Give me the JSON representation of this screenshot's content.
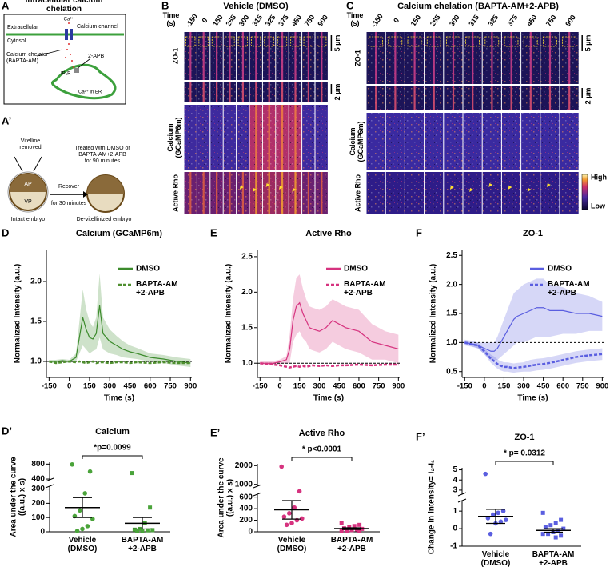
{
  "panels": {
    "A": {
      "letter": "A",
      "title": "Intracellular calcium\nchelation",
      "extracellular": "Extracellular",
      "cytosol": "Cytosol",
      "ca": "Ca²⁺",
      "channel": "Calcium channel",
      "chelator": "Calcium chelator\n(BAPTA-AM)",
      "apb": "2-APB",
      "ip3r": "IP₃R",
      "er": "Ca²⁺ in ER"
    },
    "A2": {
      "letter": "A’",
      "vitelline": "Vitelline\nremoved",
      "ap": "AP",
      "vp": "VP",
      "recover": "Recover",
      "recover_time": "for 30 minutes",
      "treated": "Treated with DMSO or\nBAPTA-AM+2-APB\nfor 90 minutes",
      "intact": "Intact embryo",
      "devit": "De-vitellinized embryo"
    },
    "B": {
      "letter": "B",
      "title": "Vehicle (DMSO)",
      "time": "Time\n(s)",
      "times": [
        -150,
        0,
        150,
        265,
        300,
        315,
        325,
        375,
        450,
        750,
        900
      ],
      "rows": [
        "ZO-1",
        "Calcium\n(GCaMP6m)",
        "Active Rho"
      ],
      "scale_large": "5 µm",
      "scale_small": "2 µm"
    },
    "C": {
      "letter": "C",
      "title": "Calcium chelation (BAPTA-AM+2-APB)",
      "time": "Time\n(s)",
      "times": [
        -150,
        0,
        150,
        265,
        300,
        315,
        325,
        375,
        450,
        750,
        900
      ],
      "rows": [
        "ZO-1",
        "Calcium\n(GCaMP6m)",
        "Active Rho"
      ],
      "scale_large": "5 µm",
      "scale_small": "2 µm",
      "colorbar_high": "High",
      "colorbar_low": "Low"
    }
  },
  "chart_data": [
    {
      "type": "line",
      "panel": "D",
      "title": "Calcium (GCaMP6m)",
      "xlabel": "Time (s)",
      "ylabel": "Normalized Intensity (a.u.)",
      "x": [
        -150,
        -100,
        -50,
        0,
        50,
        75,
        100,
        125,
        150,
        175,
        200,
        225,
        250,
        300,
        350,
        400,
        450,
        500,
        600,
        700,
        800,
        900
      ],
      "series": [
        {
          "name": "DMSO",
          "color": "#3c8b2c",
          "dash": false,
          "values": [
            1.0,
            1.0,
            1.01,
            1.0,
            1.05,
            1.3,
            1.55,
            1.4,
            1.3,
            1.28,
            1.35,
            1.7,
            1.35,
            1.25,
            1.2,
            1.15,
            1.12,
            1.1,
            1.05,
            1.03,
            1.0,
            0.98
          ],
          "errors": [
            0.02,
            0.02,
            0.02,
            0.02,
            0.05,
            0.2,
            0.35,
            0.25,
            0.2,
            0.15,
            0.2,
            0.4,
            0.2,
            0.15,
            0.12,
            0.1,
            0.08,
            0.07,
            0.05,
            0.05,
            0.05,
            0.05
          ]
        },
        {
          "name": "BAPTA-AM\n+2-APB",
          "color": "#4f8f2f",
          "dash": true,
          "values": [
            1.0,
            0.98,
            0.99,
            1.0,
            0.99,
            1.0,
            0.99,
            0.98,
            0.99,
            1.0,
            0.98,
            0.99,
            0.99,
            0.98,
            0.99,
            0.99,
            0.98,
            0.99,
            0.98,
            0.99,
            0.98,
            0.98
          ]
        }
      ],
      "xlim": [
        -170,
        910
      ],
      "xticks": [
        -150,
        0,
        150,
        300,
        450,
        600,
        750,
        900
      ],
      "ylim": [
        0.8,
        2.4
      ],
      "yticks": [
        {
          "value": 1,
          "label": "1.0"
        },
        1.5,
        {
          "value": 2,
          "label": "2.0"
        }
      ],
      "reference": 1,
      "legend": "upper right"
    },
    {
      "type": "line",
      "panel": "E",
      "title": "Active Rho",
      "xlabel": "Time (s)",
      "ylabel": "Normalized Intensity (a.u.)",
      "x": [
        -150,
        -100,
        -50,
        0,
        50,
        75,
        100,
        125,
        150,
        175,
        200,
        225,
        250,
        300,
        350,
        400,
        450,
        500,
        600,
        700,
        800,
        900
      ],
      "series": [
        {
          "name": "DMSO",
          "color": "#d6337f",
          "dash": false,
          "values": [
            1.0,
            1.0,
            1.0,
            1.02,
            1.05,
            1.2,
            1.6,
            1.8,
            1.85,
            1.7,
            1.6,
            1.5,
            1.48,
            1.45,
            1.5,
            1.6,
            1.55,
            1.5,
            1.45,
            1.3,
            1.25,
            1.2
          ],
          "errors": [
            0.03,
            0.03,
            0.03,
            0.03,
            0.05,
            0.2,
            0.3,
            0.4,
            0.4,
            0.35,
            0.3,
            0.3,
            0.3,
            0.3,
            0.3,
            0.3,
            0.3,
            0.3,
            0.3,
            0.25,
            0.2,
            0.2
          ]
        },
        {
          "name": "BAPTA-AM\n+2-APB",
          "color": "#d6337f",
          "dash": true,
          "values": [
            1.0,
            0.99,
            0.98,
            0.97,
            0.95,
            0.94,
            0.95,
            0.96,
            0.95,
            0.96,
            0.95,
            0.96,
            0.97,
            0.96,
            0.97,
            0.96,
            0.97,
            0.97,
            0.98,
            0.97,
            0.98,
            0.98
          ]
        }
      ],
      "xlim": [
        -170,
        910
      ],
      "xticks": [
        -150,
        0,
        150,
        300,
        450,
        600,
        750,
        900
      ],
      "ylim": [
        0.8,
        2.6
      ],
      "yticks": [
        {
          "value": 1,
          "label": "1.0"
        },
        1.5,
        {
          "value": 2,
          "label": "2.0"
        },
        2.5
      ],
      "reference": 1,
      "legend": "upper right"
    },
    {
      "type": "line",
      "panel": "F",
      "title": "ZO-1",
      "xlabel": "Time (s)",
      "ylabel": "Normalized Intensity (a.u.)",
      "x": [
        -150,
        -100,
        -50,
        0,
        50,
        75,
        100,
        125,
        150,
        175,
        200,
        225,
        250,
        300,
        350,
        400,
        450,
        500,
        600,
        700,
        800,
        900
      ],
      "series": [
        {
          "name": "DMSO",
          "color": "#5a5ee0",
          "dash": false,
          "values": [
            1.0,
            0.98,
            0.95,
            0.9,
            0.85,
            0.85,
            0.9,
            1.0,
            1.1,
            1.2,
            1.3,
            1.4,
            1.45,
            1.5,
            1.55,
            1.6,
            1.6,
            1.55,
            1.55,
            1.5,
            1.5,
            1.45
          ],
          "errors": [
            0.05,
            0.05,
            0.05,
            0.1,
            0.15,
            0.15,
            0.2,
            0.25,
            0.3,
            0.35,
            0.4,
            0.45,
            0.45,
            0.5,
            0.5,
            0.5,
            0.5,
            0.45,
            0.4,
            0.35,
            0.3,
            0.25
          ]
        },
        {
          "name": "BAPTA-AM\n+2-APB",
          "color": "#5a5ee0",
          "dash": true,
          "values": [
            1.0,
            0.97,
            0.95,
            0.85,
            0.72,
            0.68,
            0.63,
            0.6,
            0.58,
            0.58,
            0.57,
            0.56,
            0.57,
            0.58,
            0.6,
            0.62,
            0.63,
            0.65,
            0.7,
            0.75,
            0.78,
            0.8
          ],
          "errors": [
            0.03,
            0.03,
            0.05,
            0.05,
            0.07,
            0.08,
            0.08,
            0.08,
            0.08,
            0.08,
            0.08,
            0.08,
            0.08,
            0.08,
            0.1,
            0.1,
            0.1,
            0.1,
            0.1,
            0.1,
            0.1,
            0.1
          ]
        }
      ],
      "xlim": [
        -170,
        910
      ],
      "xticks": [
        -150,
        0,
        150,
        300,
        450,
        600,
        750,
        900
      ],
      "ylim": [
        0.4,
        2.6
      ],
      "yticks": [
        0.5,
        {
          "value": 1,
          "label": "1.0"
        },
        1.5,
        {
          "value": 2,
          "label": "2.0"
        },
        2.5
      ],
      "reference": 1,
      "legend": "upper right"
    },
    {
      "type": "dot",
      "panel": "D’",
      "title": "Calcium",
      "ylabel": "Area under the curve\n((a.u.) x s)",
      "annotation": "*p=0.0099",
      "categories": [
        "Vehicle\n(DMSO)",
        "BAPTA-AM\n+2-APB"
      ],
      "groups": [
        {
          "color": "#4aa33a",
          "marker": "circle",
          "values": [
            790,
            600,
            270,
            150,
            110,
            90,
            40,
            20,
            5
          ],
          "mean": 170,
          "sem": 70
        },
        {
          "color": "#4aa33a",
          "marker": "square",
          "values": [
            560,
            170,
            60,
            20,
            15,
            12,
            10,
            8,
            5
          ],
          "mean": 60,
          "sem": 40
        }
      ],
      "ylim_lower": [
        0,
        320
      ],
      "ylim_upper": [
        380,
        850
      ],
      "yticks": [
        0,
        100,
        200,
        300,
        400,
        800
      ]
    },
    {
      "type": "dot",
      "panel": "E’",
      "title": "Active Rho",
      "ylabel": "Area under the curve\n((a.u.) x s)",
      "annotation": "* p<0.0001",
      "categories": [
        "Vehicle\n(DMSO)",
        "BAPTA-AM\n+2-APB"
      ],
      "groups": [
        {
          "color": "#d6337f",
          "marker": "circle",
          "values": [
            1950,
            700,
            420,
            320,
            260,
            230,
            200,
            150,
            120
          ],
          "mean": 380,
          "sem": 160
        },
        {
          "color": "#d6337f",
          "marker": "square",
          "values": [
            150,
            120,
            100,
            80,
            60,
            50,
            40,
            30,
            20,
            20,
            10
          ],
          "mean": 55,
          "sem": 15
        }
      ],
      "ylim_lower": [
        0,
        650
      ],
      "ylim_upper": [
        900,
        2100
      ],
      "yticks": [
        0,
        200,
        400,
        600,
        1000,
        2000
      ]
    },
    {
      "type": "dot",
      "panel": "F’",
      "title": "ZO-1",
      "ylabel": "Change in intensity= I₂-I₁",
      "annotation": "* p= 0.0312",
      "categories": [
        "Vehicle\n(DMSO)",
        "BAPTA-AM\n+2-APB"
      ],
      "groups": [
        {
          "color": "#5a5ee0",
          "marker": "circle",
          "values": [
            4.6,
            1.0,
            0.9,
            0.8,
            0.6,
            0.5,
            0.4,
            0.3,
            -0.3
          ],
          "mean": 0.7,
          "sem": 0.4
        },
        {
          "color": "#5a5ee0",
          "marker": "square",
          "values": [
            0.9,
            0.5,
            0.3,
            0.2,
            0.1,
            0,
            -0.1,
            -0.2,
            -0.3,
            -0.3,
            -0.4,
            -0.5
          ],
          "mean": -0.1,
          "sem": 0.1
        }
      ],
      "ylim_lower": [
        -1,
        1.6
      ],
      "ylim_upper": [
        2.6,
        5.2
      ],
      "yticks": [
        -1,
        0,
        1,
        3,
        4,
        5
      ]
    }
  ]
}
